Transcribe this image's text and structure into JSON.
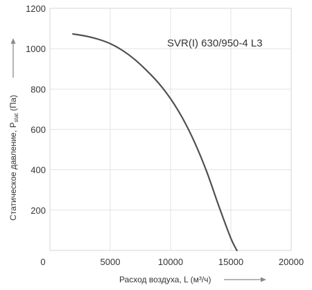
{
  "chart_data": {
    "type": "line",
    "title": "",
    "xlabel": "Расход воздуха, L (м³/ч)",
    "ylabel": "Статическое давление, P",
    "ylabel_subscript": "stat",
    "ylabel_suffix": " (Па)",
    "xlim": [
      0,
      20000
    ],
    "ylim": [
      0,
      1200
    ],
    "xticks": [
      0,
      5000,
      10000,
      15000,
      20000
    ],
    "xtick_labels": [
      "0",
      "5000",
      "10000",
      "15000",
      "20000"
    ],
    "yticks": [
      200,
      400,
      600,
      800,
      1000,
      1200
    ],
    "ytick_labels": [
      "200",
      "400",
      "600",
      "800",
      "1000",
      "1200"
    ],
    "grid": true,
    "annotation": "SVR(I) 630/950-4 L3",
    "line_color": "#505050",
    "series": [
      {
        "x": [
          1900,
          3000,
          4000,
          5000,
          6000,
          7000,
          8000,
          9000,
          10000,
          11000,
          12000,
          13000,
          14000,
          15000,
          15500
        ],
        "values": [
          1073,
          1062,
          1047,
          1025,
          992,
          948,
          893,
          830,
          752,
          655,
          535,
          390,
          220,
          60,
          0
        ]
      }
    ]
  }
}
